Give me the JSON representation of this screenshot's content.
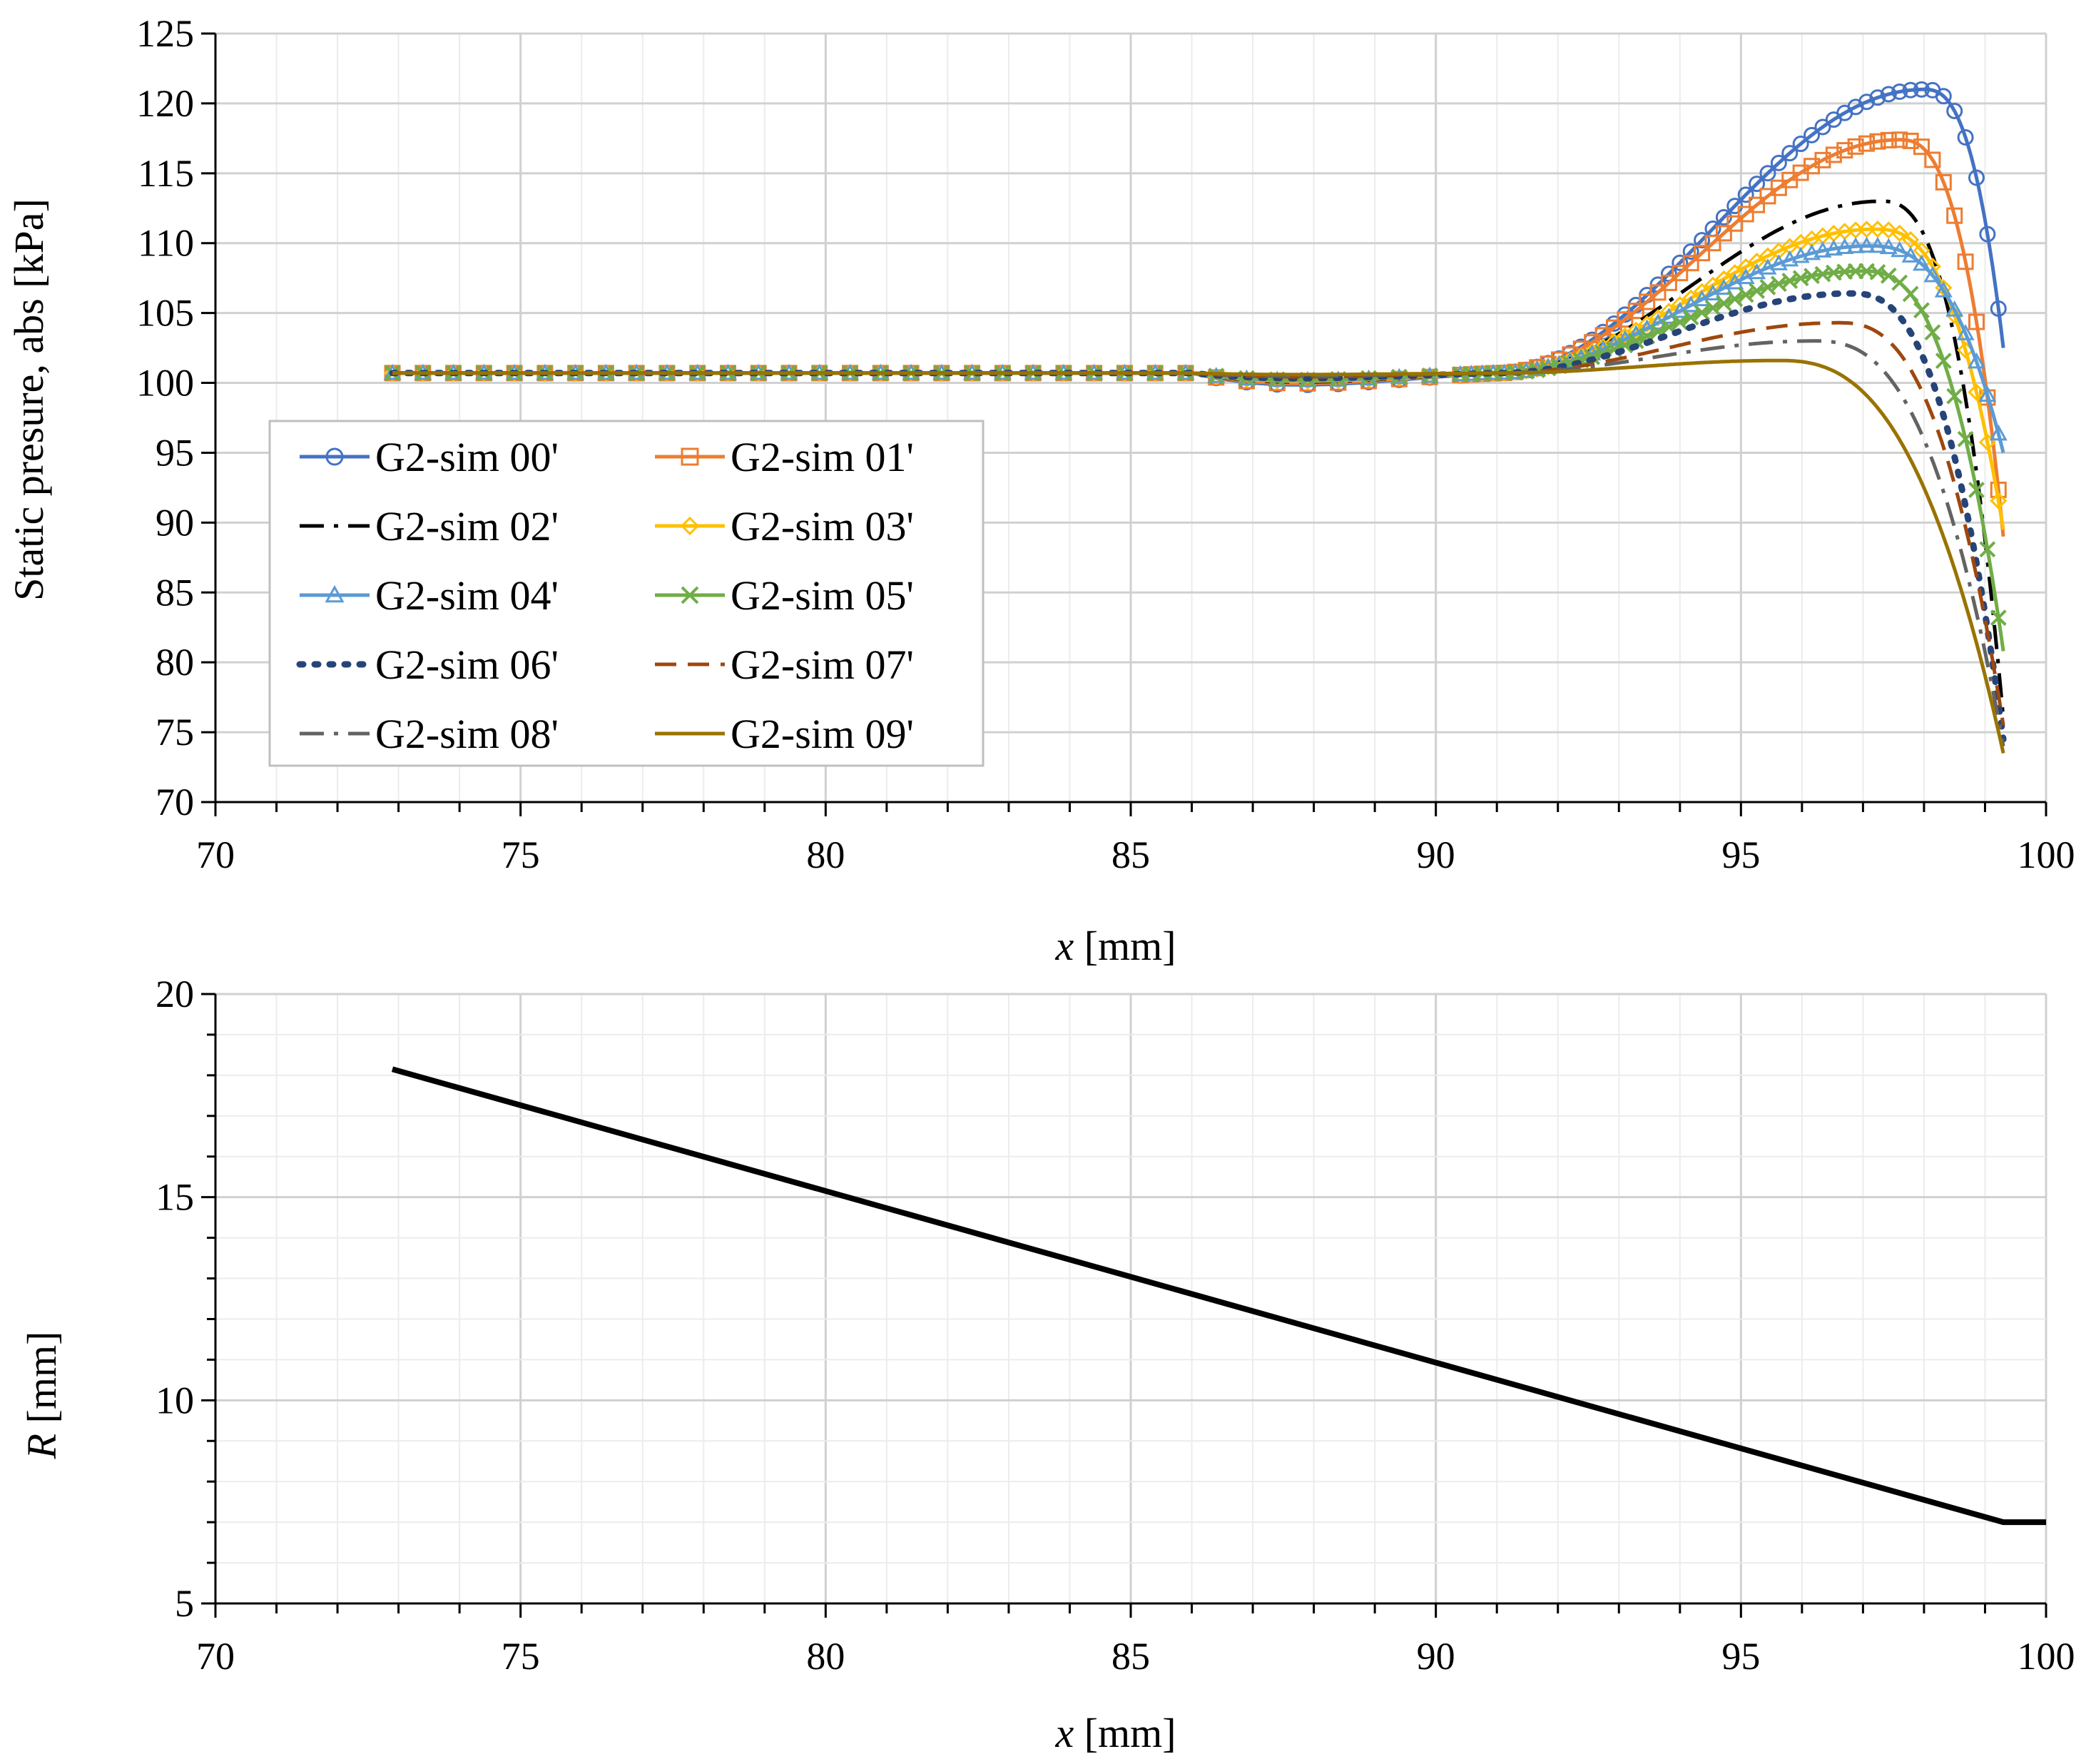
{
  "chart_data": [
    {
      "type": "line",
      "title": "",
      "xlabel_var": "x",
      "xlabel_unit": " [mm]",
      "ylabel": "Static presure, abs [kPa]",
      "xlim": [
        70,
        100
      ],
      "ylim": [
        70,
        125
      ],
      "xticks": [
        70,
        75,
        80,
        85,
        90,
        95,
        100
      ],
      "yticks": [
        70,
        75,
        80,
        85,
        90,
        95,
        100,
        105,
        110,
        115,
        120,
        125
      ],
      "xtick_labels": [
        "70",
        "75",
        "80",
        "85",
        "90",
        "95",
        "100"
      ],
      "ytick_labels": [
        "70",
        "75",
        "80",
        "85",
        "90",
        "95",
        "100",
        "105",
        "110",
        "115",
        "120",
        "125"
      ],
      "grid": true,
      "legend_position": "lower-left",
      "x_start": 72.9,
      "x_end": 99.3,
      "base": 100.7,
      "series": [
        {
          "name": "G2-sim 00'",
          "color": "#4472C4",
          "dash": "solid",
          "marker": "circle",
          "dip": 1.6,
          "peak": 121.0,
          "peak_x": 98.0,
          "end": 102.5
        },
        {
          "name": "G2-sim 01'",
          "color": "#ED7D31",
          "dash": "solid",
          "marker": "square",
          "dip": 1.4,
          "peak": 117.4,
          "peak_x": 97.6,
          "end": 89.0
        },
        {
          "name": "G2-sim 02'",
          "color": "#000000",
          "dash": "dashdot",
          "marker": "none",
          "dip": 1.2,
          "peak": 113.0,
          "peak_x": 97.3,
          "end": 76.0
        },
        {
          "name": "G2-sim 03'",
          "color": "#FFC000",
          "dash": "solid",
          "marker": "diamond",
          "dip": 1.1,
          "peak": 111.0,
          "peak_x": 97.2,
          "end": 89.5
        },
        {
          "name": "G2-sim 04'",
          "color": "#5B9BD5",
          "dash": "solid",
          "marker": "triangle",
          "dip": 1.0,
          "peak": 109.8,
          "peak_x": 97.1,
          "end": 95.0
        },
        {
          "name": "G2-sim 05'",
          "color": "#70AD47",
          "dash": "solid",
          "marker": "x",
          "dip": 0.9,
          "peak": 108.0,
          "peak_x": 97.0,
          "end": 80.8
        },
        {
          "name": "G2-sim 06'",
          "color": "#264478",
          "dash": "dot",
          "marker": "none",
          "dip": 0.7,
          "peak": 106.4,
          "peak_x": 96.8,
          "end": 74.5
        },
        {
          "name": "G2-sim 07'",
          "color": "#9E480E",
          "dash": "dash",
          "marker": "none",
          "dip": 0.5,
          "peak": 104.3,
          "peak_x": 96.6,
          "end": 75.5
        },
        {
          "name": "G2-sim 08'",
          "color": "#636363",
          "dash": "dashdot",
          "marker": "none",
          "dip": 0.4,
          "peak": 103.0,
          "peak_x": 96.2,
          "end": 74.0
        },
        {
          "name": "G2-sim 09'",
          "color": "#997300",
          "dash": "solid",
          "marker": "none",
          "dip": 0.2,
          "peak": 101.6,
          "peak_x": 95.6,
          "end": 73.5
        }
      ]
    },
    {
      "type": "line",
      "title": "",
      "xlabel_var": "x",
      "xlabel_unit": " [mm]",
      "ylabel_var": "R",
      "ylabel_unit": " [mm]",
      "xlim": [
        70,
        100
      ],
      "ylim": [
        5,
        20
      ],
      "xticks": [
        70,
        75,
        80,
        85,
        90,
        95,
        100
      ],
      "yticks": [
        5,
        10,
        15,
        20
      ],
      "xtick_labels": [
        "70",
        "75",
        "80",
        "85",
        "90",
        "95",
        "100"
      ],
      "ytick_labels": [
        "5",
        "10",
        "15",
        "20"
      ],
      "grid": true,
      "series": [
        {
          "name": "R",
          "color": "#000000",
          "x": [
            72.9,
            99.3,
            100.0
          ],
          "y": [
            18.15,
            7.0,
            7.0
          ]
        }
      ]
    }
  ]
}
